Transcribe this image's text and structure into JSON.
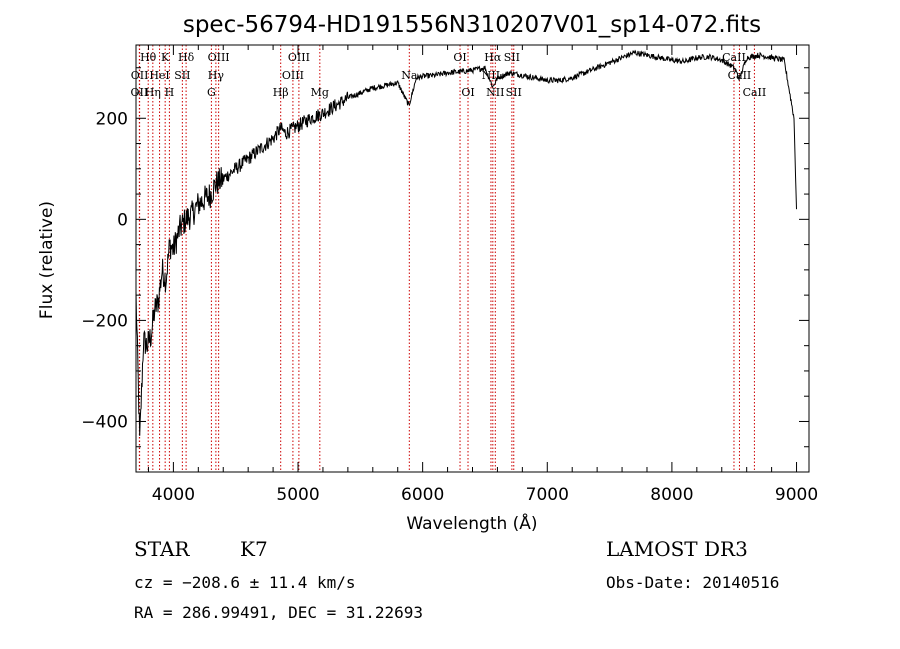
{
  "chart_data": {
    "type": "line",
    "title": "spec-56794-HD191556N310207V01_sp14-072.fits",
    "xlabel": "Wavelength (Å)",
    "ylabel": "Flux (relative)",
    "xlim": [
      3700,
      9100
    ],
    "ylim": [
      -500,
      345
    ],
    "xticks": [
      4000,
      5000,
      6000,
      7000,
      8000,
      9000
    ],
    "yticks": [
      -400,
      -200,
      0,
      200
    ],
    "grid": false,
    "series": [
      {
        "name": "spectrum",
        "x": [
          3700,
          3730,
          3760,
          3790,
          3820,
          3850,
          3880,
          3910,
          3940,
          3970,
          4000,
          4050,
          4100,
          4150,
          4200,
          4250,
          4300,
          4340,
          4400,
          4500,
          4600,
          4700,
          4800,
          4860,
          4900,
          5000,
          5100,
          5200,
          5300,
          5400,
          5500,
          5600,
          5700,
          5800,
          5890,
          5950,
          6000,
          6100,
          6200,
          6300,
          6400,
          6500,
          6563,
          6600,
          6700,
          6800,
          6900,
          7000,
          7100,
          7200,
          7300,
          7400,
          7500,
          7600,
          7700,
          7800,
          7900,
          8000,
          8100,
          8200,
          8300,
          8400,
          8500,
          8542,
          8600,
          8700,
          8800,
          8900,
          8980,
          9000
        ],
        "y": [
          -150,
          -440,
          -240,
          -250,
          -230,
          -180,
          -160,
          -100,
          -120,
          -50,
          -60,
          -20,
          0,
          10,
          30,
          40,
          50,
          70,
          80,
          100,
          120,
          140,
          160,
          180,
          170,
          185,
          200,
          210,
          225,
          240,
          250,
          260,
          265,
          270,
          225,
          280,
          283,
          285,
          290,
          292,
          295,
          300,
          262,
          280,
          290,
          285,
          280,
          275,
          275,
          280,
          290,
          300,
          310,
          320,
          330,
          325,
          320,
          315,
          312,
          320,
          322,
          315,
          300,
          278,
          320,
          325,
          320,
          315,
          200,
          20
        ]
      }
    ],
    "line_markers": [
      {
        "name": "OII",
        "wavelength": 3727,
        "row": 3
      },
      {
        "name": "Hθ",
        "wavelength": 3798,
        "row": 1
      },
      {
        "name": "OII",
        "wavelength": 3729,
        "row": 2
      },
      {
        "name": "Hη",
        "wavelength": 3835,
        "row": 3
      },
      {
        "name": "HeI",
        "wavelength": 3889,
        "row": 2
      },
      {
        "name": "K",
        "wavelength": 3934,
        "row": 1
      },
      {
        "name": "H",
        "wavelength": 3968,
        "row": 3
      },
      {
        "name": "SII",
        "wavelength": 4072,
        "row": 2
      },
      {
        "name": "Hδ",
        "wavelength": 4102,
        "row": 1
      },
      {
        "name": "G",
        "wavelength": 4305,
        "row": 3
      },
      {
        "name": "Hγ",
        "wavelength": 4341,
        "row": 2
      },
      {
        "name": "OIII",
        "wavelength": 4363,
        "row": 1
      },
      {
        "name": "Hβ",
        "wavelength": 4861,
        "row": 3
      },
      {
        "name": "OIII",
        "wavelength": 4959,
        "row": 2
      },
      {
        "name": "OIII",
        "wavelength": 5007,
        "row": 1
      },
      {
        "name": "Mg",
        "wavelength": 5175,
        "row": 3
      },
      {
        "name": "Na",
        "wavelength": 5893,
        "row": 2
      },
      {
        "name": "OI",
        "wavelength": 6300,
        "row": 1
      },
      {
        "name": "OI",
        "wavelength": 6364,
        "row": 3
      },
      {
        "name": "NII",
        "wavelength": 6548,
        "row": 2
      },
      {
        "name": "Hα",
        "wavelength": 6563,
        "row": 1
      },
      {
        "name": "NII",
        "wavelength": 6583,
        "row": 3
      },
      {
        "name": "SII",
        "wavelength": 6716,
        "row": 1
      },
      {
        "name": "SII",
        "wavelength": 6731,
        "row": 3
      },
      {
        "name": "CaII",
        "wavelength": 8498,
        "row": 1
      },
      {
        "name": "CaII",
        "wavelength": 8542,
        "row": 2
      },
      {
        "name": "CaII",
        "wavelength": 8662,
        "row": 3
      }
    ]
  },
  "info": {
    "object_type": "STAR",
    "subclass": "K7",
    "survey": "LAMOST DR3",
    "cz": "cz = −208.6 ± 11.4 km/s",
    "obs_date": "Obs-Date: 20140516",
    "coords": "RA = 286.99491, DEC =  31.22693"
  },
  "colors": {
    "spectrum": "#000000",
    "marker_line": "#cc0000",
    "background": "#ffffff"
  }
}
